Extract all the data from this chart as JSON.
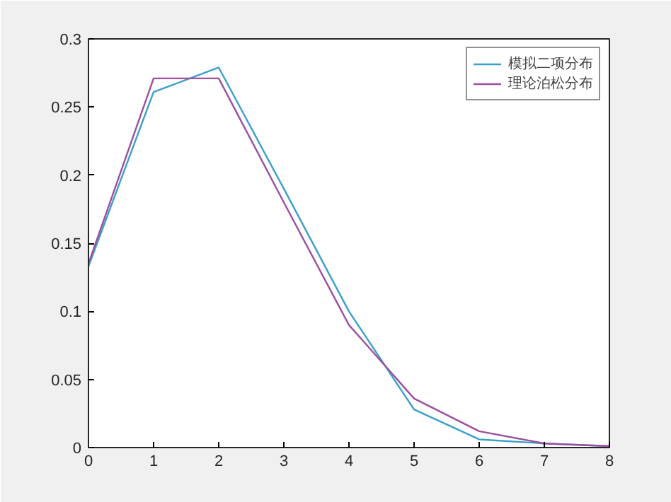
{
  "chart_data": {
    "type": "line",
    "x": [
      0,
      1,
      2,
      3,
      4,
      5,
      6,
      7,
      8
    ],
    "series": [
      {
        "name": "模拟二项分布",
        "color": "#3a9fc9",
        "values": [
          0.133,
          0.261,
          0.279,
          0.19,
          0.1,
          0.028,
          0.006,
          0.003,
          0.001
        ]
      },
      {
        "name": "理论泊松分布",
        "color": "#9c4f9e",
        "values": [
          0.135,
          0.271,
          0.271,
          0.18,
          0.09,
          0.036,
          0.012,
          0.003,
          0.001
        ]
      }
    ],
    "xlim": [
      0,
      8
    ],
    "ylim": [
      0,
      0.3
    ],
    "xticks": [
      0,
      1,
      2,
      3,
      4,
      5,
      6,
      7,
      8
    ],
    "yticks": [
      0,
      0.05,
      0.1,
      0.15,
      0.2,
      0.25,
      0.3
    ],
    "grid": false,
    "legend": "top right",
    "line_style": "solid"
  }
}
